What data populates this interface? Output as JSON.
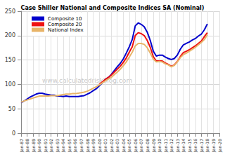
{
  "chart_data": {
    "type": "line",
    "title": "Case Shiller National and Composite Indices SA (Nominal)",
    "annotations": [
      "www.calculatedriskblog.com"
    ],
    "categories": [
      "Jan-87",
      null,
      "Jan-88",
      null,
      "Jan-89",
      null,
      "Jan-90",
      null,
      "Jan-91",
      null,
      "Jan-92",
      null,
      "Jan-93",
      null,
      "Jan-94",
      null,
      "Jan-95",
      null,
      "Jan-96",
      null,
      "Jan-97",
      null,
      "Jan-98",
      null,
      "Jan-99",
      null,
      "Jan-00",
      null,
      "Jan-01",
      null,
      "Jan-02",
      null,
      "Jan-03",
      null,
      "Jan-04",
      null,
      "Jan-05",
      null,
      "Jan-06",
      null,
      "Jan-07",
      null,
      "Jan-08",
      null,
      "Jan-09",
      null,
      "Jan-10",
      null,
      "Jan-11",
      null,
      "Jan-12",
      null,
      "Jan-13",
      null,
      "Jan-14",
      null,
      "Jan-15",
      null,
      "Jan-16",
      null,
      "Jan-17",
      null,
      "Jan-18",
      null,
      "Jan-19",
      null,
      "Jan-20"
    ],
    "series": [
      {
        "name": "Composite 10",
        "color": "#0000cc",
        "values": [
          62.5,
          66,
          70,
          74,
          77,
          80,
          82,
          82,
          80,
          79,
          78,
          78,
          76,
          76,
          75,
          76,
          75,
          75,
          75,
          75,
          76,
          77,
          80,
          83,
          87,
          91,
          97,
          103,
          110,
          114,
          120,
          128,
          136,
          143,
          152,
          164,
          177,
          192,
          220,
          226,
          223,
          218,
          207,
          190,
          168,
          158,
          160,
          160,
          156,
          153,
          151,
          153,
          160,
          172,
          181,
          184,
          187,
          191,
          194,
          199,
          203,
          212,
          224,
          null,
          null,
          null,
          null
        ]
      },
      {
        "name": "Composite 20",
        "color": "#ee1111",
        "values": [
          null,
          null,
          null,
          null,
          null,
          null,
          null,
          null,
          null,
          null,
          null,
          null,
          null,
          null,
          null,
          null,
          null,
          null,
          null,
          null,
          null,
          null,
          null,
          null,
          null,
          null,
          100,
          105,
          110,
          114,
          119,
          125,
          131,
          137,
          145,
          154,
          166,
          177,
          200,
          206,
          204,
          200,
          190,
          176,
          157,
          148,
          148,
          148,
          144,
          141,
          137,
          140,
          147,
          157,
          165,
          168,
          171,
          175,
          179,
          184,
          189,
          198,
          206,
          null,
          null,
          null,
          null
        ]
      },
      {
        "name": "National Index",
        "color": "#e8b468",
        "values": [
          63.5,
          66,
          68,
          70,
          72,
          74,
          76,
          76,
          76,
          76,
          77,
          77,
          77,
          78,
          79,
          80,
          80,
          81,
          81,
          82,
          83,
          84,
          86,
          89,
          92,
          95,
          99,
          103,
          107,
          111,
          114,
          120,
          125,
          131,
          138,
          146,
          156,
          166,
          179,
          184,
          184,
          182,
          175,
          164,
          152,
          146,
          147,
          146,
          142,
          140,
          136,
          139,
          146,
          155,
          161,
          164,
          168,
          172,
          176,
          181,
          186,
          192,
          202,
          null,
          null,
          null,
          null
        ]
      }
    ],
    "ylim": [
      0,
      250
    ],
    "yticks": [
      0,
      50,
      100,
      150,
      200,
      250
    ],
    "grid": true,
    "legend": "top-left"
  }
}
